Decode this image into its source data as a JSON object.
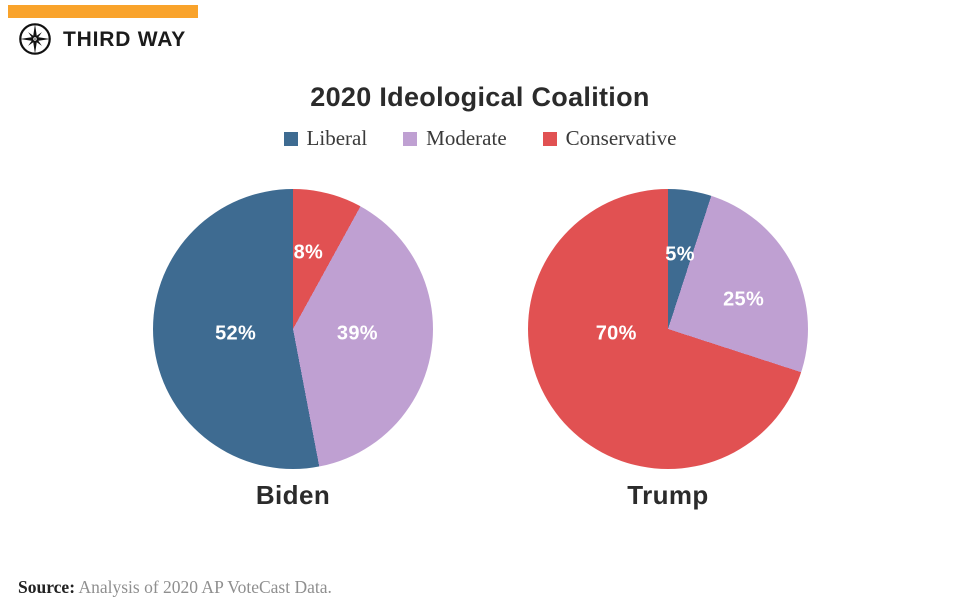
{
  "header": {
    "brand": "THIRD WAY",
    "accent_color": "#F9A32B"
  },
  "chart_data": {
    "type": "pie",
    "title": "2020 Ideological Coalition",
    "unit": "%",
    "legend_position": "top",
    "background": "#ffffff",
    "categories": [
      "Liberal",
      "Moderate",
      "Conservative"
    ],
    "colors": {
      "Liberal": "#3E6B91",
      "Moderate": "#BFA0D2",
      "Conservative": "#E15152"
    },
    "label_text_color": "#ffffff",
    "pies": [
      {
        "name": "Biden",
        "start_angle_deg": 0,
        "clockwise_from_top": true,
        "slices": [
          {
            "label": "Conservative",
            "value": 8,
            "label_pos": [
              0.11,
              -0.54
            ]
          },
          {
            "label": "Moderate",
            "value": 39,
            "label_pos": [
              0.46,
              0.036
            ]
          },
          {
            "label": "Liberal",
            "value": 52,
            "label_pos": [
              -0.41,
              0.036
            ]
          }
        ]
      },
      {
        "name": "Trump",
        "start_angle_deg": 0,
        "clockwise_from_top": true,
        "slices": [
          {
            "label": "Liberal",
            "value": 5,
            "label_pos": [
              0.086,
              -0.53
            ]
          },
          {
            "label": "Moderate",
            "value": 25,
            "label_pos": [
              0.54,
              -0.21
            ]
          },
          {
            "label": "Conservative",
            "value": 70,
            "label_pos": [
              -0.37,
              0.036
            ]
          }
        ]
      }
    ]
  },
  "source": {
    "label": "Source:",
    "text": " Analysis of 2020 AP VoteCast Data."
  }
}
